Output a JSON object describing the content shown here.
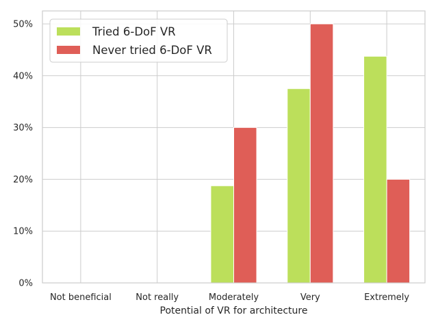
{
  "chart_data": {
    "type": "bar",
    "title": "",
    "xlabel": "Potential of VR for architecture",
    "ylabel": "",
    "categories": [
      "Not beneficial",
      "Not really",
      "Moderately",
      "Very",
      "Extremely"
    ],
    "ylim": [
      0,
      52.5
    ],
    "yticks": [
      0,
      10,
      20,
      30,
      40,
      50
    ],
    "ytick_labels": [
      "0%",
      "10%",
      "20%",
      "30%",
      "40%",
      "50%"
    ],
    "grid": true,
    "legend_position": "top-left",
    "series": [
      {
        "name": "Tried 6-DoF VR",
        "color": "#bcdf5b",
        "values": [
          0,
          0,
          18.75,
          37.5,
          43.75
        ]
      },
      {
        "name": "Never tried 6-DoF VR",
        "color": "#df5e57",
        "values": [
          0,
          0,
          30,
          50,
          20
        ]
      }
    ]
  }
}
